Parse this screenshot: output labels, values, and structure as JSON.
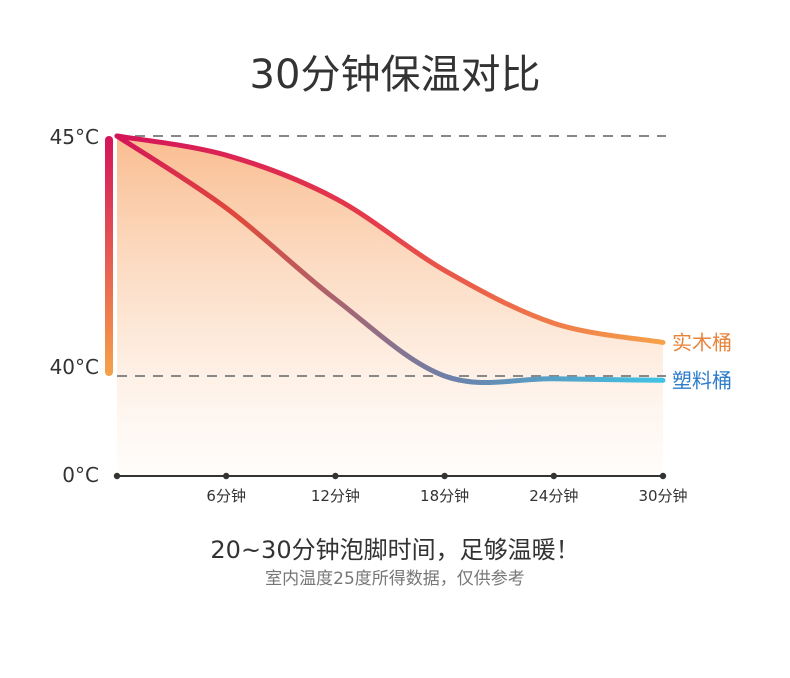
{
  "colors": {
    "wood": "#F5A24A",
    "wood_label": "#E8833A",
    "plastic": "#3FC3E6",
    "plastic_label": "#2E7CCB",
    "start": "#D4145A",
    "axis": "#333333",
    "dashed": "#888888"
  },
  "chart_data": {
    "type": "line",
    "title": "30分钟保温对比",
    "xlabel": "",
    "ylabel": "",
    "x": [
      0,
      6,
      12,
      18,
      24,
      30
    ],
    "x_tick_labels": [
      "6分钟",
      "12分钟",
      "18分钟",
      "24分钟",
      "30分钟"
    ],
    "y_tick_labels": [
      "45°C",
      "40°C",
      "0°C"
    ],
    "series": [
      {
        "name": "实木桶",
        "values": [
          45.0,
          44.6,
          43.7,
          42.2,
          41.1,
          40.7
        ]
      },
      {
        "name": "塑料桶",
        "values": [
          45.0,
          43.5,
          41.6,
          40.0,
          38.9,
          38.3
        ]
      }
    ],
    "grid": "dashed reference lines at 45°C and 40°C"
  },
  "caption": {
    "main": "20~30分钟泡脚时间，足够温暖！",
    "sub": "室内温度25度所得数据，仅供参考"
  }
}
